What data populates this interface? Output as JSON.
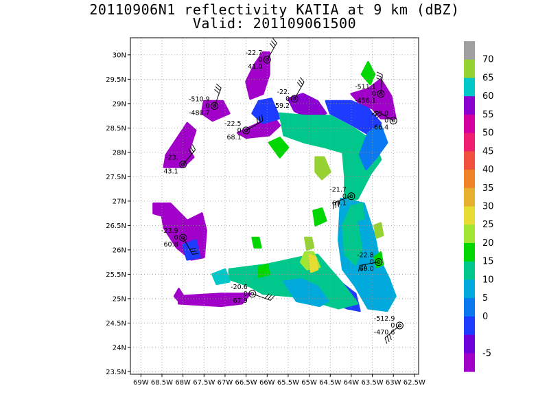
{
  "title": {
    "line1": "20110906N1 reflectivity KATIA at 9 km (dBZ)",
    "line2": "Valid: 201109061500"
  },
  "map": {
    "lon_ticks": [
      {
        "lon": -69,
        "label": "69W"
      },
      {
        "lon": -68.5,
        "label": "68.5W"
      },
      {
        "lon": -68,
        "label": "68W"
      },
      {
        "lon": -67.5,
        "label": "67.5W"
      },
      {
        "lon": -67,
        "label": "67W"
      },
      {
        "lon": -66.5,
        "label": "66.5W"
      },
      {
        "lon": -66,
        "label": "66W"
      },
      {
        "lon": -65.5,
        "label": "65.5W"
      },
      {
        "lon": -65,
        "label": "65W"
      },
      {
        "lon": -64.5,
        "label": "64.5W"
      },
      {
        "lon": -64,
        "label": "64W"
      },
      {
        "lon": -63.5,
        "label": "63.5W"
      },
      {
        "lon": -63,
        "label": "63W"
      },
      {
        "lon": -62.5,
        "label": "62.5W"
      }
    ],
    "lat_ticks": [
      {
        "lat": 23.5,
        "label": "23.5N"
      },
      {
        "lat": 24,
        "label": "24N"
      },
      {
        "lat": 24.5,
        "label": "24.5N"
      },
      {
        "lat": 25,
        "label": "25N"
      },
      {
        "lat": 25.5,
        "label": "25.5N"
      },
      {
        "lat": 26,
        "label": "26N"
      },
      {
        "lat": 26.5,
        "label": "26.5N"
      },
      {
        "lat": 27,
        "label": "27N"
      },
      {
        "lat": 27.5,
        "label": "27.5N"
      },
      {
        "lat": 28,
        "label": "28N"
      },
      {
        "lat": 28.5,
        "label": "28.5N"
      },
      {
        "lat": 29,
        "label": "29N"
      },
      {
        "lat": 29.5,
        "label": "29.5N"
      },
      {
        "lat": 30,
        "label": "30N"
      }
    ],
    "lon_range": [
      -69.25,
      -62.4
    ],
    "lat_range": [
      23.45,
      30.35
    ],
    "grid": "dotted"
  },
  "colorbar": {
    "labels": [
      "70",
      "65",
      "60",
      "55",
      "50",
      "45",
      "40",
      "35",
      "30",
      "25",
      "20",
      "15",
      "10",
      "5",
      "0",
      "-5"
    ],
    "colors": [
      "#a0a0a0",
      "#96d232",
      "#00c8c8",
      "#8c00d2",
      "#d200a0",
      "#f01e6e",
      "#f0503c",
      "#f08228",
      "#e6af2d",
      "#e6dc32",
      "#a0e632",
      "#00d600",
      "#00c88c",
      "#00aadc",
      "#0a78f0",
      "#1e3cff",
      "#6e00dc",
      "#a000c8"
    ]
  },
  "reflectivity_blobs": [
    {
      "color": "#a000c8",
      "pts": [
        [
          -66.1,
          30.05
        ],
        [
          -65.95,
          30.05
        ],
        [
          -65.95,
          29.6
        ],
        [
          -66.1,
          29.2
        ],
        [
          -66.4,
          29.1
        ],
        [
          -66.5,
          29.45
        ],
        [
          -66.3,
          29.8
        ]
      ]
    },
    {
      "color": "#a000c8",
      "pts": [
        [
          -67.5,
          29.05
        ],
        [
          -67.05,
          29.05
        ],
        [
          -66.9,
          28.8
        ],
        [
          -67.3,
          28.65
        ],
        [
          -67.55,
          28.8
        ]
      ]
    },
    {
      "color": "#a000c8",
      "pts": [
        [
          -67.9,
          28.6
        ],
        [
          -67.7,
          28.45
        ],
        [
          -67.85,
          28.05
        ],
        [
          -67.75,
          27.9
        ],
        [
          -68.0,
          27.7
        ],
        [
          -68.45,
          27.7
        ],
        [
          -68.4,
          27.95
        ]
      ]
    },
    {
      "color": "#a000c8",
      "pts": [
        [
          -68.7,
          26.95
        ],
        [
          -68.3,
          26.95
        ],
        [
          -67.9,
          26.6
        ],
        [
          -67.55,
          26.75
        ],
        [
          -67.45,
          26.4
        ],
        [
          -67.5,
          25.85
        ],
        [
          -67.8,
          25.8
        ],
        [
          -68.15,
          26.05
        ],
        [
          -68.45,
          26.45
        ],
        [
          -68.5,
          26.7
        ],
        [
          -68.7,
          26.75
        ]
      ]
    },
    {
      "color": "#a000c8",
      "pts": [
        [
          -68.1,
          25.2
        ],
        [
          -67.95,
          25.0
        ],
        [
          -68.05,
          24.9
        ],
        [
          -68.2,
          25.05
        ]
      ]
    },
    {
      "color": "#a000c8",
      "pts": [
        [
          -66.4,
          25.1
        ],
        [
          -66.6,
          24.9
        ],
        [
          -67.1,
          24.85
        ],
        [
          -68.1,
          24.9
        ],
        [
          -68.1,
          25.05
        ],
        [
          -67.1,
          25.1
        ]
      ]
    },
    {
      "color": "#a000c8",
      "pts": [
        [
          -66.7,
          28.4
        ],
        [
          -66.2,
          28.6
        ],
        [
          -65.9,
          28.8
        ],
        [
          -65.7,
          28.55
        ],
        [
          -65.95,
          28.35
        ],
        [
          -66.5,
          28.3
        ]
      ]
    },
    {
      "color": "#a000c8",
      "pts": [
        [
          -63.6,
          29.3
        ],
        [
          -63.3,
          29.5
        ],
        [
          -63.05,
          29.15
        ],
        [
          -62.95,
          28.7
        ],
        [
          -63.3,
          28.7
        ],
        [
          -63.5,
          28.9
        ],
        [
          -63.8,
          29.0
        ],
        [
          -64.0,
          29.2
        ]
      ]
    },
    {
      "color": "#8c00d2",
      "pts": [
        [
          -65.5,
          29.1
        ],
        [
          -65.15,
          29.2
        ],
        [
          -64.8,
          29.05
        ],
        [
          -64.6,
          28.8
        ],
        [
          -65.0,
          28.7
        ],
        [
          -65.35,
          28.85
        ]
      ]
    },
    {
      "color": "#1e3cff",
      "pts": [
        [
          -66.2,
          29.05
        ],
        [
          -65.9,
          29.1
        ],
        [
          -65.7,
          28.7
        ],
        [
          -66.1,
          28.6
        ],
        [
          -66.35,
          28.8
        ]
      ]
    },
    {
      "color": "#1e3cff",
      "pts": [
        [
          -64.6,
          29.05
        ],
        [
          -64.0,
          29.05
        ],
        [
          -63.6,
          28.9
        ],
        [
          -63.3,
          28.6
        ],
        [
          -63.45,
          28.3
        ],
        [
          -63.95,
          28.55
        ],
        [
          -64.5,
          28.8
        ]
      ]
    },
    {
      "color": "#1e3cff",
      "pts": [
        [
          -64.05,
          26.95
        ],
        [
          -63.85,
          26.95
        ],
        [
          -63.75,
          26.4
        ],
        [
          -63.6,
          25.9
        ],
        [
          -63.4,
          25.5
        ],
        [
          -63.1,
          25.3
        ],
        [
          -63.3,
          24.95
        ],
        [
          -63.6,
          24.9
        ],
        [
          -63.85,
          25.3
        ],
        [
          -63.85,
          25.8
        ],
        [
          -64.0,
          26.3
        ]
      ]
    },
    {
      "color": "#1e3cff",
      "pts": [
        [
          -64.5,
          25.3
        ],
        [
          -64.2,
          25.3
        ],
        [
          -63.9,
          25.1
        ],
        [
          -63.8,
          24.75
        ],
        [
          -64.1,
          24.8
        ],
        [
          -64.5,
          24.95
        ]
      ]
    },
    {
      "color": "#1e3cff",
      "pts": [
        [
          -68.0,
          26.1
        ],
        [
          -67.7,
          26.2
        ],
        [
          -67.6,
          25.85
        ],
        [
          -67.9,
          25.8
        ]
      ]
    },
    {
      "color": "#00c88c",
      "pts": [
        [
          -65.7,
          28.8
        ],
        [
          -65.1,
          28.75
        ],
        [
          -64.5,
          28.75
        ],
        [
          -63.95,
          28.5
        ],
        [
          -63.45,
          28.2
        ],
        [
          -63.3,
          27.85
        ],
        [
          -63.55,
          27.55
        ],
        [
          -63.85,
          27.05
        ],
        [
          -64.15,
          26.95
        ],
        [
          -64.15,
          27.5
        ],
        [
          -64.2,
          28.0
        ],
        [
          -64.6,
          28.1
        ],
        [
          -65.1,
          28.2
        ],
        [
          -65.6,
          28.35
        ]
      ]
    },
    {
      "color": "#0a78f0",
      "pts": [
        [
          -63.6,
          28.4
        ],
        [
          -63.3,
          28.55
        ],
        [
          -63.15,
          28.2
        ],
        [
          -63.4,
          27.9
        ],
        [
          -63.65,
          27.65
        ],
        [
          -63.8,
          27.95
        ]
      ]
    },
    {
      "color": "#00aadc",
      "pts": [
        [
          -64.25,
          27.05
        ],
        [
          -63.7,
          26.95
        ],
        [
          -63.45,
          26.3
        ],
        [
          -63.35,
          25.85
        ],
        [
          -63.1,
          25.4
        ],
        [
          -62.95,
          25.05
        ],
        [
          -63.15,
          24.75
        ],
        [
          -63.6,
          24.8
        ],
        [
          -63.9,
          25.25
        ],
        [
          -64.2,
          25.6
        ],
        [
          -64.3,
          26.2
        ]
      ]
    },
    {
      "color": "#00c88c",
      "pts": [
        [
          -64.0,
          26.9
        ],
        [
          -63.85,
          26.5
        ],
        [
          -63.75,
          26.0
        ],
        [
          -63.9,
          25.7
        ],
        [
          -64.15,
          25.9
        ],
        [
          -64.2,
          26.5
        ]
      ]
    },
    {
      "color": "#00c88c",
      "pts": [
        [
          -66.9,
          25.6
        ],
        [
          -66.0,
          25.7
        ],
        [
          -65.2,
          25.85
        ],
        [
          -64.8,
          25.9
        ],
        [
          -64.5,
          25.6
        ],
        [
          -64.2,
          25.3
        ],
        [
          -63.85,
          24.9
        ],
        [
          -64.3,
          24.8
        ],
        [
          -64.7,
          24.9
        ],
        [
          -65.4,
          25.05
        ],
        [
          -66.1,
          25.1
        ],
        [
          -66.4,
          25.25
        ],
        [
          -66.9,
          25.4
        ]
      ]
    },
    {
      "color": "#00aadc",
      "pts": [
        [
          -65.6,
          25.35
        ],
        [
          -65.2,
          25.4
        ],
        [
          -64.8,
          25.25
        ],
        [
          -64.55,
          24.95
        ],
        [
          -64.75,
          24.85
        ],
        [
          -65.3,
          24.95
        ]
      ]
    },
    {
      "color": "#a0e632",
      "pts": [
        [
          -65.1,
          25.95
        ],
        [
          -64.9,
          25.95
        ],
        [
          -64.75,
          25.65
        ],
        [
          -65.05,
          25.6
        ],
        [
          -65.2,
          25.75
        ]
      ]
    },
    {
      "color": "#e6dc32",
      "pts": [
        [
          -65.0,
          25.9
        ],
        [
          -64.85,
          25.85
        ],
        [
          -64.8,
          25.6
        ],
        [
          -64.95,
          25.55
        ]
      ]
    },
    {
      "color": "#00d600",
      "pts": [
        [
          -66.2,
          25.65
        ],
        [
          -66.0,
          25.7
        ],
        [
          -65.95,
          25.5
        ],
        [
          -66.2,
          25.45
        ]
      ]
    },
    {
      "color": "#00d600",
      "pts": [
        [
          -63.75,
          29.6
        ],
        [
          -63.6,
          29.85
        ],
        [
          -63.45,
          29.6
        ],
        [
          -63.55,
          29.4
        ]
      ]
    },
    {
      "color": "#00d600",
      "pts": [
        [
          -65.95,
          28.2
        ],
        [
          -65.7,
          28.3
        ],
        [
          -65.5,
          28.1
        ],
        [
          -65.7,
          27.9
        ]
      ]
    },
    {
      "color": "#00d600",
      "pts": [
        [
          -64.9,
          26.8
        ],
        [
          -64.7,
          26.85
        ],
        [
          -64.6,
          26.6
        ],
        [
          -64.85,
          26.5
        ]
      ]
    },
    {
      "color": "#96d232",
      "pts": [
        [
          -64.85,
          27.9
        ],
        [
          -64.65,
          27.9
        ],
        [
          -64.5,
          27.6
        ],
        [
          -64.7,
          27.45
        ],
        [
          -64.85,
          27.6
        ]
      ]
    },
    {
      "color": "#96d232",
      "pts": [
        [
          -63.45,
          26.5
        ],
        [
          -63.3,
          26.55
        ],
        [
          -63.25,
          26.3
        ],
        [
          -63.4,
          26.25
        ]
      ]
    },
    {
      "color": "#00d600",
      "pts": [
        [
          -63.45,
          25.85
        ],
        [
          -63.3,
          25.95
        ],
        [
          -63.25,
          25.7
        ],
        [
          -63.4,
          25.65
        ]
      ]
    },
    {
      "color": "#96d232",
      "pts": [
        [
          -65.1,
          26.25
        ],
        [
          -64.95,
          26.25
        ],
        [
          -64.9,
          26.05
        ],
        [
          -65.05,
          26.0
        ]
      ]
    },
    {
      "color": "#00c8c8",
      "pts": [
        [
          -67.3,
          25.5
        ],
        [
          -67.0,
          25.6
        ],
        [
          -66.9,
          25.35
        ],
        [
          -67.2,
          25.3
        ]
      ]
    },
    {
      "color": "#00d600",
      "pts": [
        [
          -66.35,
          26.25
        ],
        [
          -66.2,
          26.25
        ],
        [
          -66.15,
          26.05
        ],
        [
          -66.3,
          26.05
        ]
      ]
    },
    {
      "color": "#00c88c",
      "pts": [
        [
          -63.95,
          26.9
        ],
        [
          -63.75,
          26.95
        ],
        [
          -63.7,
          26.65
        ],
        [
          -63.9,
          26.6
        ]
      ]
    }
  ],
  "stations": [
    {
      "lon": -66.0,
      "lat": 29.9,
      "labels": [
        "-22.7",
        "0",
        "41.0"
      ],
      "barb_angle": 60
    },
    {
      "lon": -67.25,
      "lat": 28.95,
      "labels": [
        "-510.9",
        "0",
        "-480.7"
      ],
      "barb_angle": 70
    },
    {
      "lon": -65.35,
      "lat": 29.1,
      "labels": [
        "-22.",
        "0",
        "59.2"
      ],
      "barb_angle": 60
    },
    {
      "lon": -63.3,
      "lat": 29.2,
      "labels": [
        "-511.1",
        "0",
        "-456.1"
      ],
      "barb_angle": 85
    },
    {
      "lon": -66.5,
      "lat": 28.45,
      "labels": [
        "-22.5",
        "0",
        "68.1"
      ],
      "barb_angle": 30
    },
    {
      "lon": -63.0,
      "lat": 28.65,
      "labels": [
        "-23.0",
        "0",
        "66.4"
      ],
      "barb_angle": 150
    },
    {
      "lon": -68.0,
      "lat": 27.75,
      "labels": [
        "-23.",
        "",
        "43.1"
      ],
      "barb_angle": 50
    },
    {
      "lon": -64.0,
      "lat": 27.1,
      "labels": [
        "-21.7",
        "0",
        "69.1"
      ],
      "barb_angle": 200
    },
    {
      "lon": -68.0,
      "lat": 26.25,
      "labels": [
        "-23.9",
        "0",
        "60.8"
      ],
      "barb_angle": 300
    },
    {
      "lon": -63.35,
      "lat": 25.75,
      "labels": [
        "-22.8",
        "0",
        "69.0"
      ],
      "barb_angle": 190
    },
    {
      "lon": -66.35,
      "lat": 25.1,
      "labels": [
        "-20.6",
        "0",
        "67.9"
      ],
      "barb_angle": 340
    },
    {
      "lon": -62.85,
      "lat": 24.45,
      "labels": [
        "-512.9",
        "0",
        "-470.6"
      ],
      "barb_angle": 220
    }
  ]
}
